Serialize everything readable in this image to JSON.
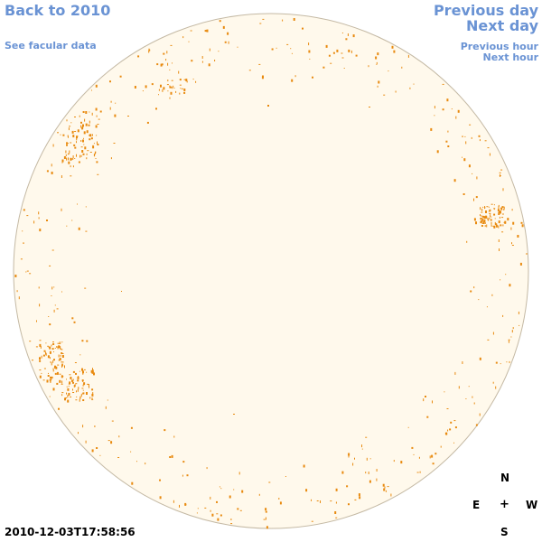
{
  "nav": {
    "back_label": "Back to 2010",
    "facular_label": "See facular data",
    "prev_day_label": "Previous day",
    "next_day_label": "Next day",
    "prev_hour_label": "Previous hour",
    "next_hour_label": "Next hour"
  },
  "timestamp": "2010-12-03T17:58:56",
  "compass": {
    "north": "N",
    "east": "E",
    "center": "+",
    "west": "W",
    "south": "S"
  },
  "colors": {
    "background": "#ffffff",
    "disk_fill": "#fff9ec",
    "disk_edge": "#c4b9a4",
    "faculae": "#e88a0f",
    "link": "#6a93d4"
  }
}
